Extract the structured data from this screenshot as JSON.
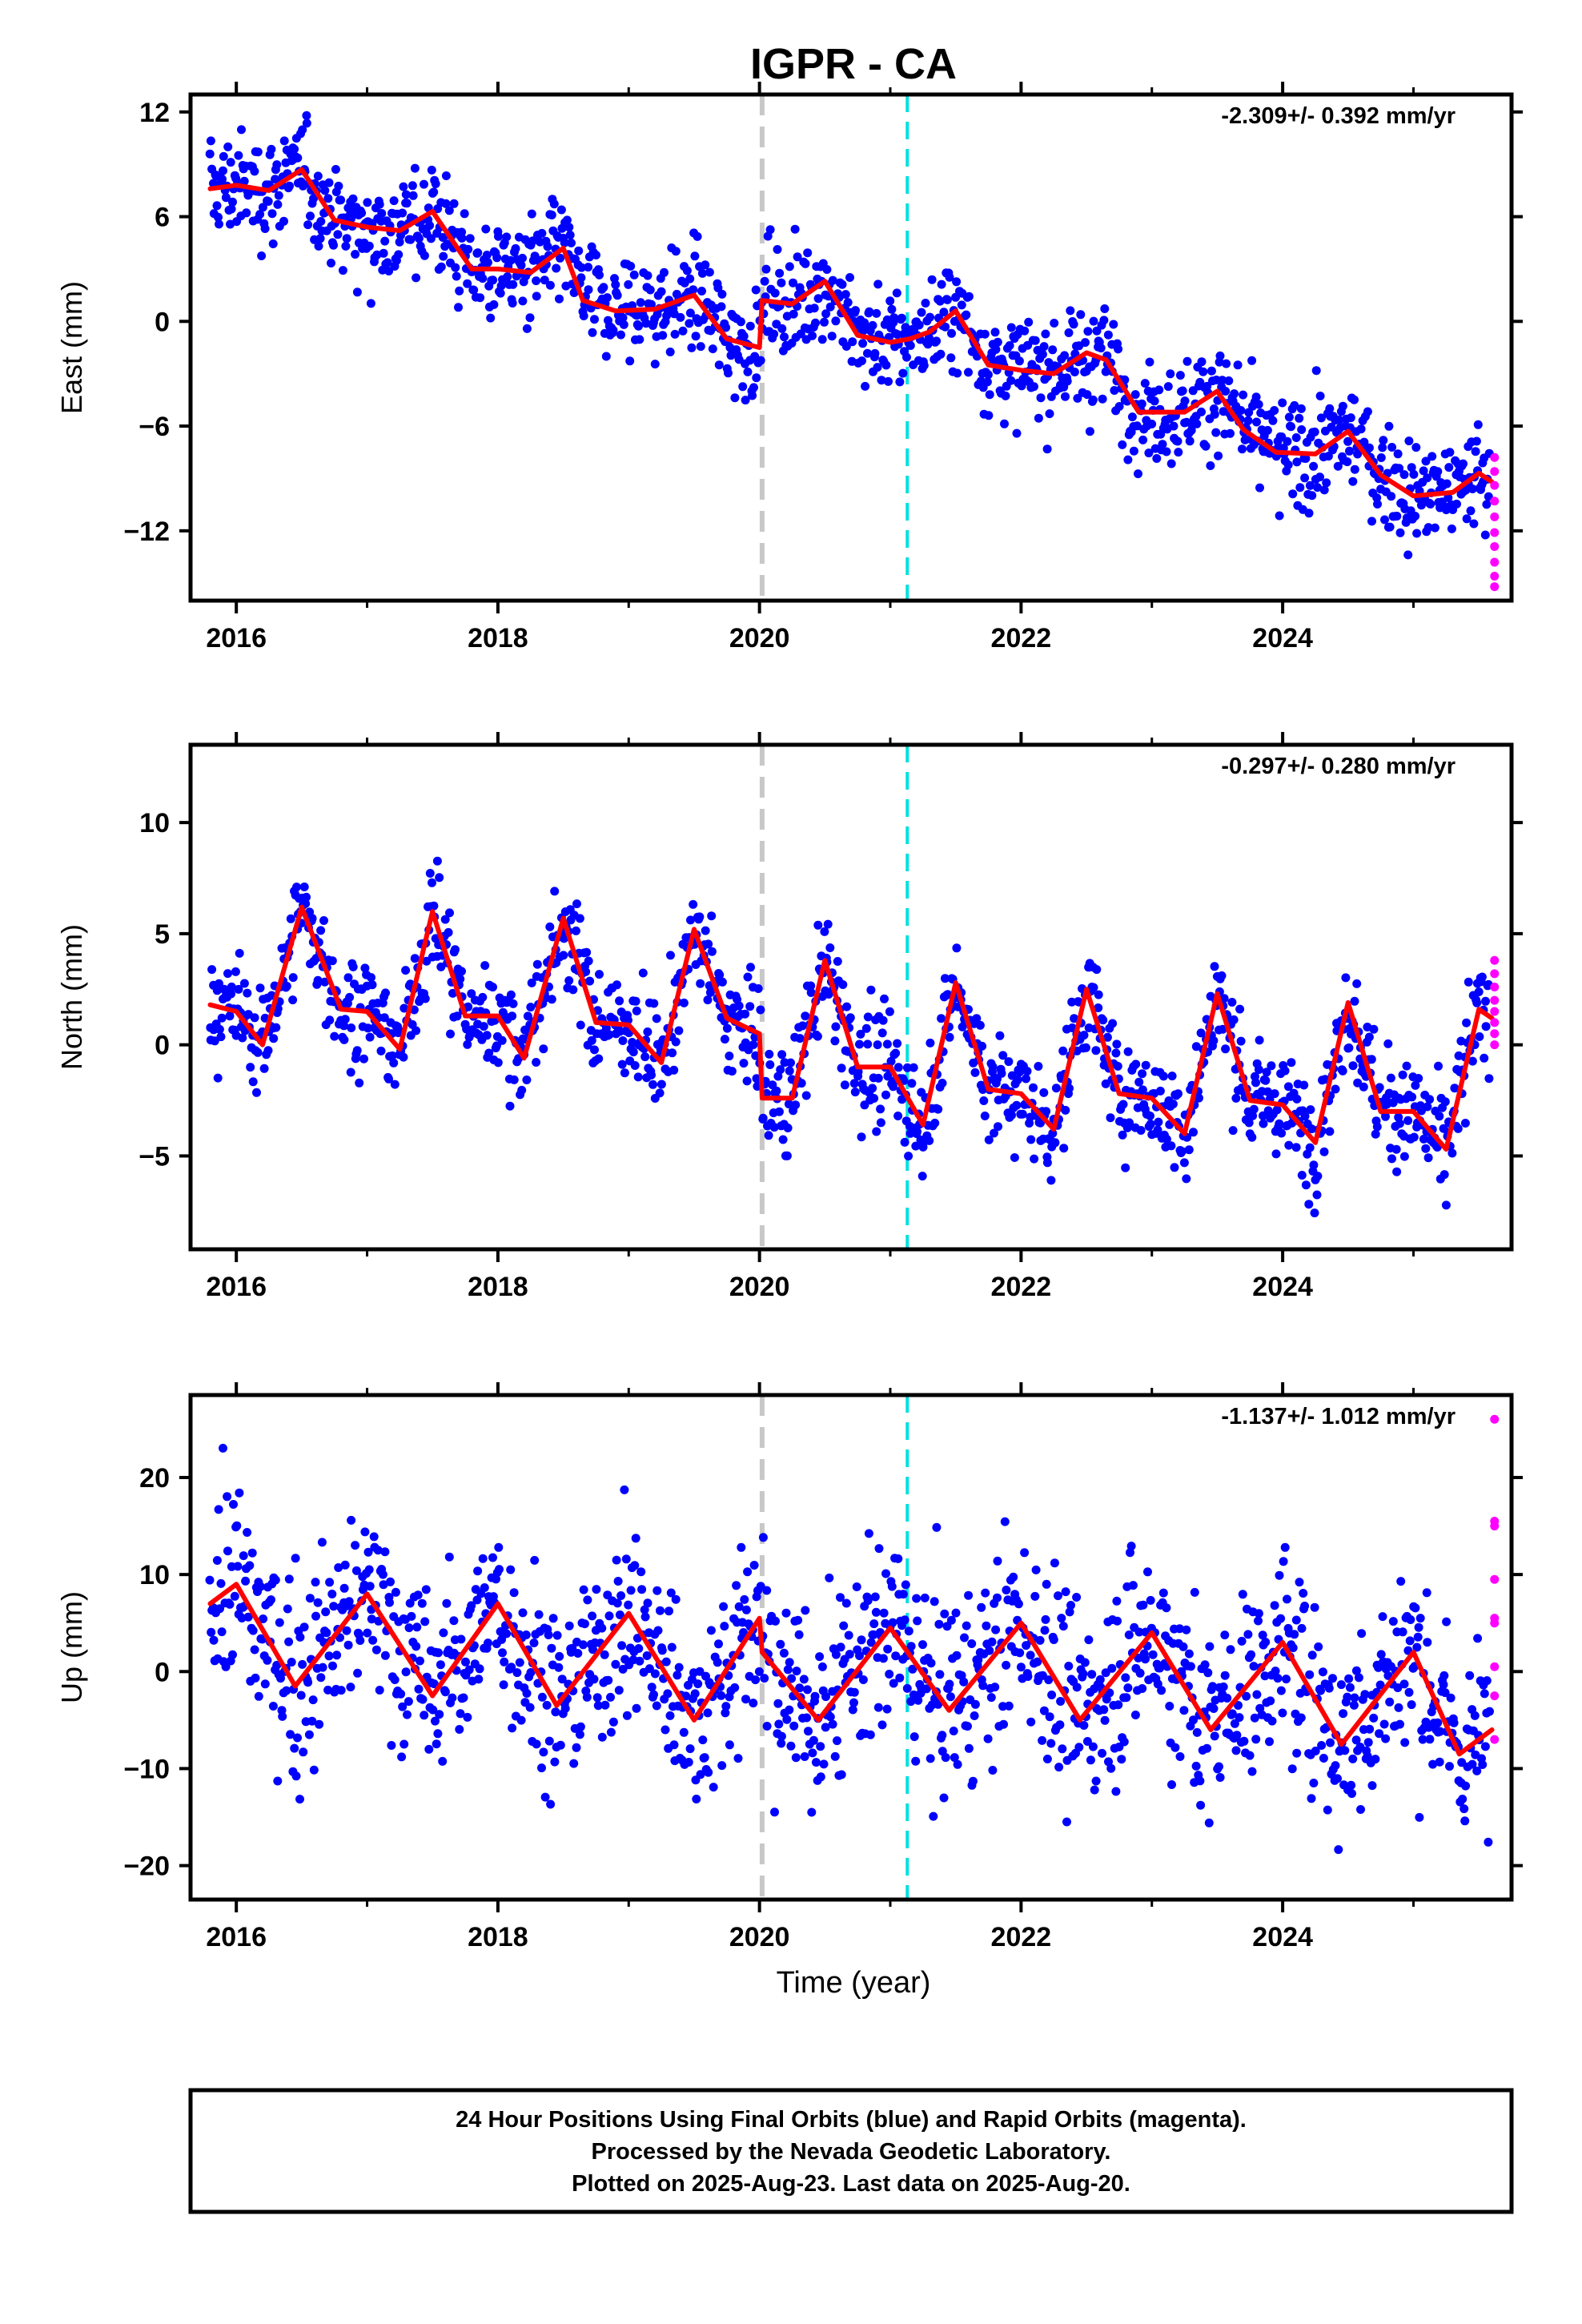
{
  "title": "IGPR - CA",
  "colors": {
    "final_points": "#0000ff",
    "rapid_points": "#ff00ff",
    "model_line": "#ff0000",
    "equipment_line": "#c8c8c8",
    "offset_line": "#00e0e0",
    "frame": "#000000"
  },
  "x_axis": {
    "label": "Time (year)",
    "range": [
      2015.65,
      2025.75
    ],
    "ticks": [
      2016,
      2018,
      2020,
      2022,
      2024
    ],
    "tick_labels": [
      "2016",
      "2018",
      "2020",
      "2022",
      "2024"
    ]
  },
  "vertical_markers": [
    {
      "type": "dashed-gray",
      "year": 2020.02
    },
    {
      "type": "dashed-cyan",
      "year": 2021.13
    }
  ],
  "footer": {
    "line1": "24 Hour Positions Using Final Orbits (blue) and Rapid Orbits (magenta).",
    "line2": "Processed by the Nevada Geodetic Laboratory.",
    "line3": "Plotted on 2025-Aug-23. Last data on 2025-Aug-20."
  },
  "chart_data": [
    {
      "type": "scatter",
      "ylabel": "East (mm)",
      "rate_text": "-2.309+/- 0.392 mm/yr",
      "ylim": [
        -16,
        13
      ],
      "yticks": [
        -12,
        -6,
        0,
        6,
        12
      ],
      "ytick_labels": [
        "−12",
        "−6",
        "0",
        "6",
        "12"
      ],
      "series": [
        {
          "kind": "model",
          "x": [
            2015.8,
            2016.0,
            2016.25,
            2016.5,
            2016.75,
            2017.0,
            2017.25,
            2017.5,
            2017.8,
            2018.0,
            2018.25,
            2018.5,
            2018.65,
            2018.9,
            2019.2,
            2019.5,
            2019.75,
            2020.0,
            2020.02,
            2020.25,
            2020.5,
            2020.75,
            2021.0,
            2021.15,
            2021.3,
            2021.5,
            2021.75,
            2022.0,
            2022.25,
            2022.5,
            2022.65,
            2022.9,
            2023.25,
            2023.5,
            2023.7,
            2023.95,
            2024.25,
            2024.5,
            2024.75,
            2025.0,
            2025.3,
            2025.5,
            2025.6
          ],
          "y": [
            7.6,
            7.8,
            7.5,
            8.7,
            5.8,
            5.4,
            5.2,
            6.3,
            3.0,
            3.0,
            2.8,
            4.2,
            1.2,
            0.6,
            0.7,
            1.5,
            -1.0,
            -1.5,
            1.2,
            1.0,
            2.3,
            -0.8,
            -1.2,
            -1.0,
            -0.6,
            0.6,
            -2.5,
            -2.8,
            -3.0,
            -1.8,
            -2.2,
            -5.2,
            -5.2,
            -4.0,
            -6.2,
            -7.5,
            -7.6,
            -6.3,
            -8.8,
            -10.0,
            -9.8,
            -8.7,
            -9.2
          ]
        },
        {
          "kind": "rapid",
          "x": [
            2025.62,
            2025.62,
            2025.62,
            2025.62,
            2025.62,
            2025.62,
            2025.62,
            2025.62,
            2025.62,
            2025.62
          ],
          "y": [
            -7.8,
            -8.6,
            -9.4,
            -10.3,
            -11.2,
            -12.1,
            -12.9,
            -13.8,
            -14.6,
            -15.2
          ]
        }
      ]
    },
    {
      "type": "scatter",
      "ylabel": "North (mm)",
      "rate_text": "-0.297+/- 0.280 mm/yr",
      "ylim": [
        -9.2,
        13.5
      ],
      "yticks": [
        -5,
        0,
        5,
        10
      ],
      "ytick_labels": [
        "−5",
        "0",
        "5",
        "10"
      ],
      "series": [
        {
          "kind": "model",
          "x": [
            2015.8,
            2016.0,
            2016.2,
            2016.5,
            2016.8,
            2017.0,
            2017.25,
            2017.5,
            2017.75,
            2018.0,
            2018.2,
            2018.5,
            2018.75,
            2019.0,
            2019.25,
            2019.5,
            2019.75,
            2020.0,
            2020.02,
            2020.25,
            2020.5,
            2020.75,
            2021.0,
            2021.25,
            2021.5,
            2021.75,
            2022.0,
            2022.25,
            2022.5,
            2022.75,
            2023.0,
            2023.25,
            2023.5,
            2023.75,
            2024.0,
            2024.25,
            2024.5,
            2024.75,
            2025.0,
            2025.25,
            2025.5,
            2025.6
          ],
          "y": [
            1.8,
            1.5,
            0.0,
            6.2,
            1.6,
            1.5,
            -0.2,
            6.0,
            1.3,
            1.3,
            -0.6,
            5.7,
            1.0,
            0.9,
            -0.8,
            5.2,
            1.2,
            0.5,
            -2.4,
            -2.4,
            3.8,
            -1.0,
            -1.0,
            -3.6,
            2.8,
            -2.0,
            -2.2,
            -3.8,
            2.5,
            -2.2,
            -2.4,
            -4.0,
            2.3,
            -2.5,
            -2.7,
            -4.4,
            1.9,
            -3.0,
            -3.0,
            -4.7,
            1.6,
            1.2
          ]
        },
        {
          "kind": "rapid",
          "x": [
            2025.62,
            2025.62,
            2025.62,
            2025.62,
            2025.62,
            2025.62,
            2025.62,
            2025.62
          ],
          "y": [
            3.8,
            3.2,
            2.6,
            2.0,
            1.5,
            1.0,
            0.5,
            0.0
          ]
        }
      ]
    },
    {
      "type": "scatter",
      "ylabel": "Up (mm)",
      "rate_text": "-1.137+/- 1.012 mm/yr",
      "ylim": [
        -23.5,
        28.5
      ],
      "yticks": [
        -20,
        -10,
        0,
        10,
        20
      ],
      "ytick_labels": [
        "−20",
        "−10",
        "0",
        "10",
        "20"
      ],
      "series": [
        {
          "kind": "model",
          "x": [
            2015.8,
            2016.0,
            2016.45,
            2017.0,
            2017.5,
            2018.0,
            2018.45,
            2019.0,
            2019.5,
            2020.0,
            2020.02,
            2020.45,
            2021.0,
            2021.45,
            2022.0,
            2022.45,
            2023.0,
            2023.45,
            2024.0,
            2024.45,
            2025.0,
            2025.35,
            2025.6
          ],
          "y": [
            7.0,
            9.0,
            -1.5,
            8.0,
            -2.5,
            7.0,
            -3.5,
            6.0,
            -5.0,
            5.5,
            2.0,
            -5.0,
            4.5,
            -4.0,
            5.0,
            -5.0,
            4.0,
            -6.0,
            3.0,
            -7.5,
            2.0,
            -8.5,
            -6.0
          ]
        },
        {
          "kind": "rapid",
          "x": [
            2025.62,
            2025.62,
            2025.62,
            2025.62,
            2025.62,
            2025.62,
            2025.62,
            2025.62,
            2025.62
          ],
          "y": [
            26.0,
            15.5,
            15.0,
            9.5,
            5.5,
            5.0,
            0.5,
            -2.5,
            -7.0
          ]
        }
      ]
    }
  ]
}
